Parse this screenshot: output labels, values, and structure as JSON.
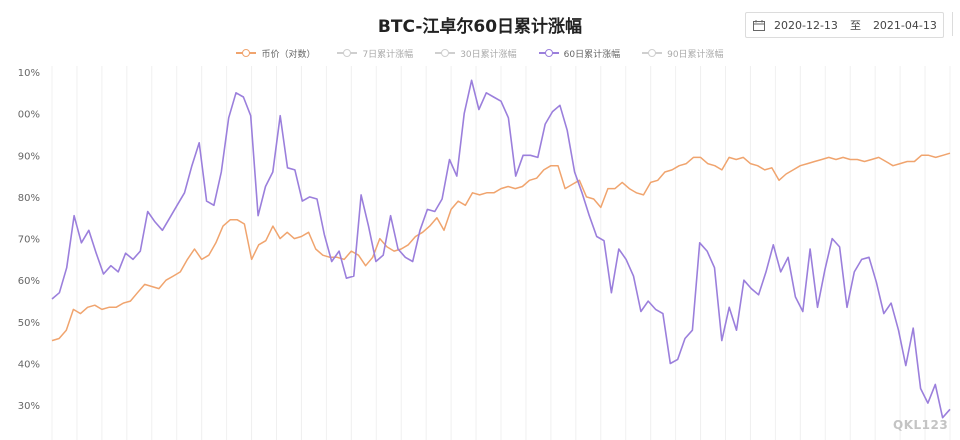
{
  "chart_data": {
    "type": "line",
    "title": "BTC-江卓尔60日累计涨幅",
    "y_tick_labels": [
      "10%",
      "00%",
      "90%",
      "80%",
      "70%",
      "60%",
      "50%",
      "40%",
      "30%"
    ],
    "ylim": [
      25,
      110
    ],
    "x_ticks_visible": false,
    "grid": "vertical gridlines",
    "legend_position": "top",
    "legend": [
      {
        "label": "币价（对数）",
        "color": "#f0a46e",
        "active": true
      },
      {
        "label": "7日累计涨幅",
        "color": "#cfcfcf",
        "active": false
      },
      {
        "label": "30日累计涨幅",
        "color": "#cfcfcf",
        "active": false
      },
      {
        "label": "60日累计涨幅",
        "color": "#9b7fdc",
        "active": true
      },
      {
        "label": "90日累计涨幅",
        "color": "#cfcfcf",
        "active": false
      }
    ],
    "date_range": {
      "start": "2020-12-13",
      "separator": "至",
      "end": "2021-04-13"
    },
    "series": [
      {
        "name": "币价（对数）",
        "color": "#f0a46e",
        "values": [
          45.5,
          46,
          48,
          53,
          52,
          53.5,
          54,
          53,
          53.5,
          53.5,
          54.5,
          55,
          57,
          59,
          58.5,
          58,
          60,
          61,
          62,
          65,
          67.5,
          65,
          66,
          69,
          73,
          74.5,
          74.5,
          73.5,
          65,
          68.5,
          69.5,
          73,
          70,
          71.5,
          70,
          70.5,
          71.5,
          67.5,
          66,
          65.5,
          65.5,
          65,
          67,
          66,
          63.5,
          65.5,
          70,
          68,
          67,
          67.5,
          68.5,
          70.5,
          71.5,
          73,
          75,
          72,
          77,
          79,
          78,
          81,
          80.5,
          81,
          81,
          82,
          82.5,
          82,
          82.5,
          84,
          84.5,
          86.5,
          87.5,
          87.5,
          82,
          83,
          84,
          80,
          79.5,
          77.5,
          82,
          82,
          83.5,
          82,
          81,
          80.5,
          83.5,
          84,
          86,
          86.5,
          87.5,
          88,
          89.5,
          89.5,
          88,
          87.5,
          86.5,
          89.5,
          89,
          89.5,
          88,
          87.5,
          86.5,
          87,
          84,
          85.5,
          86.5,
          87.5,
          88,
          88.5,
          89,
          89.5,
          89,
          89.5,
          89,
          89,
          88.5,
          89,
          89.5,
          88.5,
          87.5,
          88,
          88.5,
          88.5,
          90,
          90,
          89.5,
          90,
          90.5
        ]
      },
      {
        "name": "60日累计涨幅",
        "color": "#9b7fdc",
        "values": [
          55.5,
          57,
          63,
          75.5,
          69,
          72,
          66.5,
          61.5,
          63.5,
          62,
          66.5,
          65,
          67,
          76.5,
          74,
          72,
          75,
          78,
          81,
          87.5,
          93,
          79,
          78,
          86,
          99,
          105,
          104,
          99.5,
          75.5,
          82.5,
          86,
          99.5,
          87,
          86.5,
          79,
          80,
          79.5,
          71,
          64.5,
          67,
          60.5,
          61,
          80.5,
          73,
          64.5,
          66,
          75.5,
          67.5,
          65.5,
          64.5,
          72,
          77,
          76.5,
          79.5,
          89,
          85,
          100,
          108,
          101,
          105,
          104,
          103,
          99,
          85,
          90,
          90,
          89.5,
          97.5,
          100.5,
          102,
          96,
          86,
          81,
          75.5,
          70.5,
          69.5,
          57,
          67.5,
          65,
          61,
          52.5,
          55,
          53,
          52,
          40,
          41,
          46,
          48,
          69,
          67,
          63,
          45.5,
          53.5,
          48,
          60,
          58,
          56.5,
          62,
          68.5,
          62,
          65.5,
          56,
          52.5,
          67.5,
          53.5,
          62.5,
          70,
          68,
          53.5,
          62,
          65,
          65.5,
          59.5,
          52,
          54.5,
          48,
          39.5,
          48.5,
          34,
          30.5,
          35,
          27,
          29
        ]
      }
    ]
  },
  "watermark": "QKL123"
}
